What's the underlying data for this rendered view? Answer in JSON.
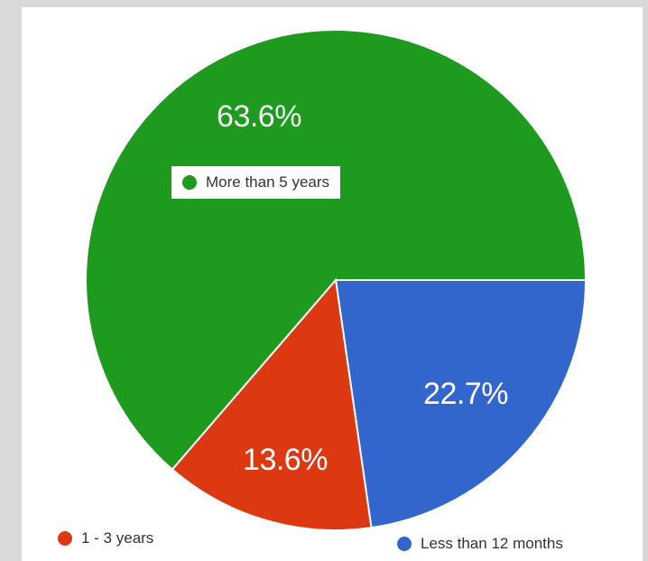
{
  "chart_data": {
    "type": "pie",
    "slices": [
      {
        "label": "More than 5 years",
        "value": 63.6,
        "display": "63.6%",
        "color": "#1e9a1e"
      },
      {
        "label": "Less than 12 months",
        "value": 22.7,
        "display": "22.7%",
        "color": "#3366cc"
      },
      {
        "label": "1 - 3 years",
        "value": 13.6,
        "display": "13.6%",
        "color": "#dc3912"
      }
    ],
    "start_angle_deg": 90,
    "direction": "clockwise",
    "legend": "inline labels"
  }
}
